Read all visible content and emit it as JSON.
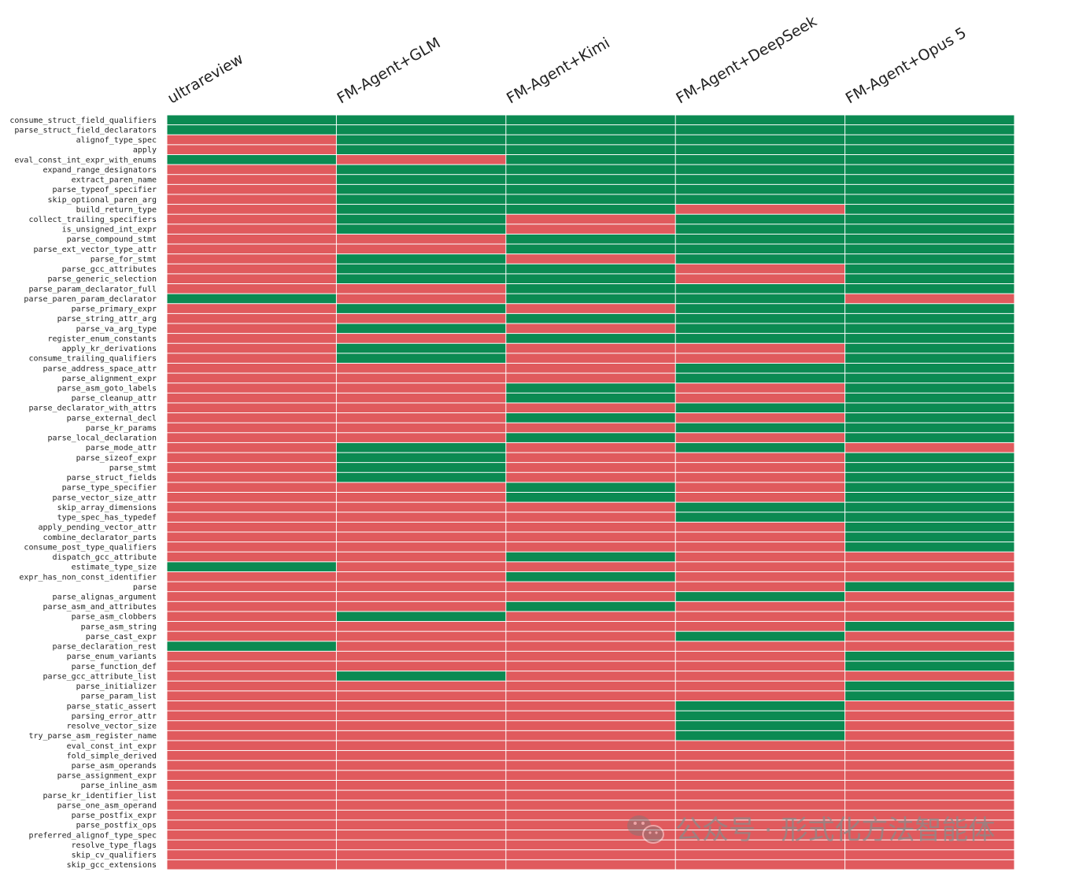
{
  "chart_data": {
    "type": "heatmap",
    "title": "",
    "columns": [
      "ultrareview",
      "FM-Agent+GLM",
      "FM-Agent+Kimi",
      "FM-Agent+DeepSeek",
      "FM-Agent+Opus 5"
    ],
    "colors": {
      "pass": "#0b8a52",
      "fail": "#e05a5d",
      "grid": "#ffffff"
    },
    "values_legend": "1 = green, 0 = red",
    "rows": [
      {
        "name": "consume_struct_field_qualifiers",
        "values": [
          1,
          1,
          1,
          1,
          1
        ]
      },
      {
        "name": "parse_struct_field_declarators",
        "values": [
          1,
          1,
          1,
          1,
          1
        ]
      },
      {
        "name": "alignof_type_spec",
        "values": [
          0,
          1,
          1,
          1,
          1
        ]
      },
      {
        "name": "apply",
        "values": [
          0,
          1,
          1,
          1,
          1
        ]
      },
      {
        "name": "eval_const_int_expr_with_enums",
        "values": [
          1,
          0,
          1,
          1,
          1
        ]
      },
      {
        "name": "expand_range_designators",
        "values": [
          0,
          1,
          1,
          1,
          1
        ]
      },
      {
        "name": "extract_paren_name",
        "values": [
          0,
          1,
          1,
          1,
          1
        ]
      },
      {
        "name": "parse_typeof_specifier",
        "values": [
          0,
          1,
          1,
          1,
          1
        ]
      },
      {
        "name": "skip_optional_paren_arg",
        "values": [
          0,
          1,
          1,
          1,
          1
        ]
      },
      {
        "name": "build_return_type",
        "values": [
          0,
          1,
          1,
          0,
          1
        ]
      },
      {
        "name": "collect_trailing_specifiers",
        "values": [
          0,
          1,
          0,
          1,
          1
        ]
      },
      {
        "name": "is_unsigned_int_expr",
        "values": [
          0,
          1,
          0,
          1,
          1
        ]
      },
      {
        "name": "parse_compound_stmt",
        "values": [
          0,
          0,
          1,
          1,
          1
        ]
      },
      {
        "name": "parse_ext_vector_type_attr",
        "values": [
          0,
          0,
          1,
          1,
          1
        ]
      },
      {
        "name": "parse_for_stmt",
        "values": [
          0,
          1,
          0,
          1,
          1
        ]
      },
      {
        "name": "parse_gcc_attributes",
        "values": [
          0,
          1,
          1,
          0,
          1
        ]
      },
      {
        "name": "parse_generic_selection",
        "values": [
          0,
          1,
          1,
          0,
          1
        ]
      },
      {
        "name": "parse_param_declarator_full",
        "values": [
          0,
          0,
          1,
          1,
          1
        ]
      },
      {
        "name": "parse_paren_param_declarator",
        "values": [
          1,
          0,
          1,
          1,
          0
        ]
      },
      {
        "name": "parse_primary_expr",
        "values": [
          0,
          1,
          0,
          1,
          1
        ]
      },
      {
        "name": "parse_string_attr_arg",
        "values": [
          0,
          0,
          1,
          1,
          1
        ]
      },
      {
        "name": "parse_va_arg_type",
        "values": [
          0,
          1,
          0,
          1,
          1
        ]
      },
      {
        "name": "register_enum_constants",
        "values": [
          0,
          0,
          1,
          1,
          1
        ]
      },
      {
        "name": "apply_kr_derivations",
        "values": [
          0,
          1,
          0,
          0,
          1
        ]
      },
      {
        "name": "consume_trailing_qualifiers",
        "values": [
          0,
          1,
          0,
          0,
          1
        ]
      },
      {
        "name": "parse_address_space_attr",
        "values": [
          0,
          0,
          0,
          1,
          1
        ]
      },
      {
        "name": "parse_alignment_expr",
        "values": [
          0,
          0,
          0,
          1,
          1
        ]
      },
      {
        "name": "parse_asm_goto_labels",
        "values": [
          0,
          0,
          1,
          0,
          1
        ]
      },
      {
        "name": "parse_cleanup_attr",
        "values": [
          0,
          0,
          1,
          0,
          1
        ]
      },
      {
        "name": "parse_declarator_with_attrs",
        "values": [
          0,
          0,
          0,
          1,
          1
        ]
      },
      {
        "name": "parse_external_decl",
        "values": [
          0,
          0,
          1,
          0,
          1
        ]
      },
      {
        "name": "parse_kr_params",
        "values": [
          0,
          0,
          0,
          1,
          1
        ]
      },
      {
        "name": "parse_local_declaration",
        "values": [
          0,
          0,
          1,
          0,
          1
        ]
      },
      {
        "name": "parse_mode_attr",
        "values": [
          0,
          1,
          0,
          1,
          0
        ]
      },
      {
        "name": "parse_sizeof_expr",
        "values": [
          0,
          1,
          0,
          0,
          1
        ]
      },
      {
        "name": "parse_stmt",
        "values": [
          0,
          1,
          0,
          0,
          1
        ]
      },
      {
        "name": "parse_struct_fields",
        "values": [
          0,
          1,
          0,
          0,
          1
        ]
      },
      {
        "name": "parse_type_specifier",
        "values": [
          0,
          0,
          1,
          0,
          1
        ]
      },
      {
        "name": "parse_vector_size_attr",
        "values": [
          0,
          0,
          1,
          0,
          1
        ]
      },
      {
        "name": "skip_array_dimensions",
        "values": [
          0,
          0,
          0,
          1,
          1
        ]
      },
      {
        "name": "type_spec_has_typedef",
        "values": [
          0,
          0,
          0,
          1,
          1
        ]
      },
      {
        "name": "apply_pending_vector_attr",
        "values": [
          0,
          0,
          0,
          0,
          1
        ]
      },
      {
        "name": "combine_declarator_parts",
        "values": [
          0,
          0,
          0,
          0,
          1
        ]
      },
      {
        "name": "consume_post_type_qualifiers",
        "values": [
          0,
          0,
          0,
          0,
          1
        ]
      },
      {
        "name": "dispatch_gcc_attribute",
        "values": [
          0,
          0,
          1,
          0,
          0
        ]
      },
      {
        "name": "estimate_type_size",
        "values": [
          1,
          0,
          0,
          0,
          0
        ]
      },
      {
        "name": "expr_has_non_const_identifier",
        "values": [
          0,
          0,
          1,
          0,
          0
        ]
      },
      {
        "name": "parse",
        "values": [
          0,
          0,
          0,
          0,
          1
        ]
      },
      {
        "name": "parse_alignas_argument",
        "values": [
          0,
          0,
          0,
          1,
          0
        ]
      },
      {
        "name": "parse_asm_and_attributes",
        "values": [
          0,
          0,
          1,
          0,
          0
        ]
      },
      {
        "name": "parse_asm_clobbers",
        "values": [
          0,
          1,
          0,
          0,
          0
        ]
      },
      {
        "name": "parse_asm_string",
        "values": [
          0,
          0,
          0,
          0,
          1
        ]
      },
      {
        "name": "parse_cast_expr",
        "values": [
          0,
          0,
          0,
          1,
          0
        ]
      },
      {
        "name": "parse_declaration_rest",
        "values": [
          1,
          0,
          0,
          0,
          0
        ]
      },
      {
        "name": "parse_enum_variants",
        "values": [
          0,
          0,
          0,
          0,
          1
        ]
      },
      {
        "name": "parse_function_def",
        "values": [
          0,
          0,
          0,
          0,
          1
        ]
      },
      {
        "name": "parse_gcc_attribute_list",
        "values": [
          0,
          1,
          0,
          0,
          0
        ]
      },
      {
        "name": "parse_initializer",
        "values": [
          0,
          0,
          0,
          0,
          1
        ]
      },
      {
        "name": "parse_param_list",
        "values": [
          0,
          0,
          0,
          0,
          1
        ]
      },
      {
        "name": "parse_static_assert",
        "values": [
          0,
          0,
          0,
          1,
          0
        ]
      },
      {
        "name": "parsing_error_attr",
        "values": [
          0,
          0,
          0,
          1,
          0
        ]
      },
      {
        "name": "resolve_vector_size",
        "values": [
          0,
          0,
          0,
          1,
          0
        ]
      },
      {
        "name": "try_parse_asm_register_name",
        "values": [
          0,
          0,
          0,
          1,
          0
        ]
      },
      {
        "name": "eval_const_int_expr",
        "values": [
          0,
          0,
          0,
          0,
          0
        ]
      },
      {
        "name": "fold_simple_derived",
        "values": [
          0,
          0,
          0,
          0,
          0
        ]
      },
      {
        "name": "parse_asm_operands",
        "values": [
          0,
          0,
          0,
          0,
          0
        ]
      },
      {
        "name": "parse_assignment_expr",
        "values": [
          0,
          0,
          0,
          0,
          0
        ]
      },
      {
        "name": "parse_inline_asm",
        "values": [
          0,
          0,
          0,
          0,
          0
        ]
      },
      {
        "name": "parse_kr_identifier_list",
        "values": [
          0,
          0,
          0,
          0,
          0
        ]
      },
      {
        "name": "parse_one_asm_operand",
        "values": [
          0,
          0,
          0,
          0,
          0
        ]
      },
      {
        "name": "parse_postfix_expr",
        "values": [
          0,
          0,
          0,
          0,
          0
        ]
      },
      {
        "name": "parse_postfix_ops",
        "values": [
          0,
          0,
          0,
          0,
          0
        ]
      },
      {
        "name": "preferred_alignof_type_spec",
        "values": [
          0,
          0,
          0,
          0,
          0
        ]
      },
      {
        "name": "resolve_type_flags",
        "values": [
          0,
          0,
          0,
          0,
          0
        ]
      },
      {
        "name": "skip_cv_qualifiers",
        "values": [
          0,
          0,
          0,
          0,
          0
        ]
      },
      {
        "name": "skip_gcc_extensions",
        "values": [
          0,
          0,
          0,
          0,
          0
        ]
      }
    ]
  },
  "watermark": {
    "icon": "wechat-icon",
    "text": "公众号 · 形式化方法智能体"
  }
}
